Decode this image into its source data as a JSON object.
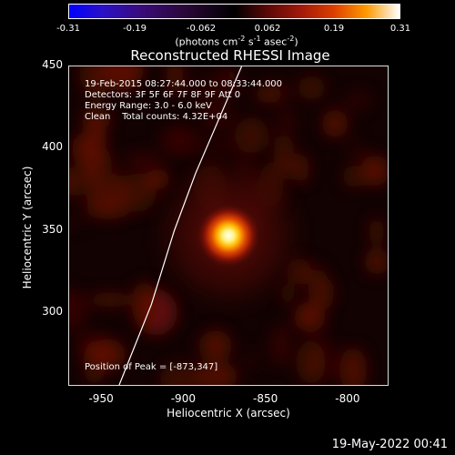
{
  "colorbar": {
    "ticks": [
      "-0.31",
      "-0.19",
      "-0.062",
      "0.062",
      "0.19",
      "0.31"
    ],
    "unit_prefix": "(photons cm",
    "unit_exp1": "-2",
    "unit_mid": " s",
    "unit_exp2": "-1",
    "unit_mid2": " asec",
    "unit_exp3": "-2",
    "unit_suffix": ")"
  },
  "title": "Reconstructed RHESSI Image",
  "info": {
    "time_range": "19-Feb-2015 08:27:44.000 to 08:33:44.000",
    "detectors": "Detectors: 3F 5F 6F 7F 8F 9F Att 0",
    "energy": "Energy Range: 3.0 - 6.0 keV",
    "clean": "Clean    Total counts: 4.32E+04",
    "peak": "Position of Peak = [-873,347]"
  },
  "chart_data": {
    "type": "heatmap",
    "title": "Reconstructed RHESSI Image",
    "xlabel": "Heliocentric X (arcsec)",
    "ylabel": "Heliocentric Y (arcsec)",
    "xlim": [
      -970,
      -775
    ],
    "ylim": [
      255,
      450
    ],
    "x_ticks": [
      "-950",
      "-900",
      "-850",
      "-800"
    ],
    "x_tick_values": [
      -950,
      -900,
      -850,
      -800
    ],
    "y_ticks": [
      "300",
      "350",
      "400",
      "450"
    ],
    "y_tick_values": [
      300,
      350,
      400,
      450
    ],
    "peak": [
      -873,
      347
    ],
    "colorbar_range": [
      -0.31,
      0.31
    ],
    "limb_points": [
      [
        -940,
        255
      ],
      [
        -920,
        305
      ],
      [
        -906,
        350
      ],
      [
        -893,
        385
      ],
      [
        -878,
        420
      ],
      [
        -865,
        450
      ]
    ]
  },
  "axis": {
    "xlabel": "Heliocentric X (arcsec)",
    "ylabel": "Heliocentric Y (arcsec)"
  },
  "timestamp": "19-May-2022 00:41"
}
